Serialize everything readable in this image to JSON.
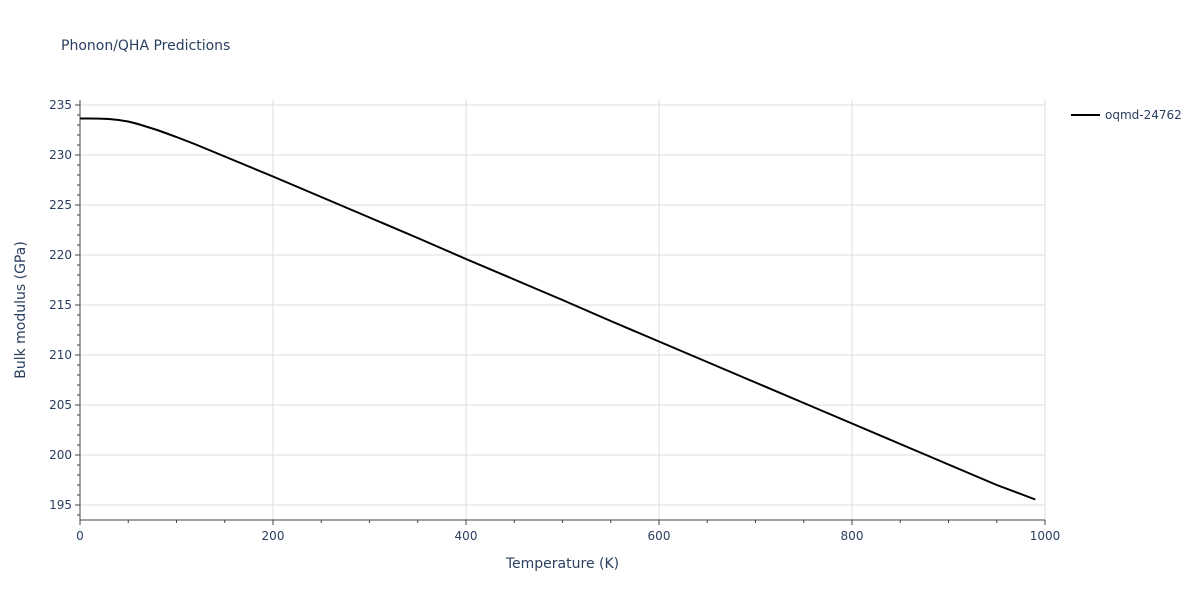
{
  "chart_data": {
    "type": "line",
    "title": "Phonon/QHA Predictions",
    "xlabel": "Temperature (K)",
    "ylabel": "Bulk modulus (GPa)",
    "xlim": [
      0,
      1000
    ],
    "ylim": [
      193.5,
      235.5
    ],
    "x_ticks": [
      0,
      200,
      400,
      600,
      800,
      1000
    ],
    "y_ticks": [
      195,
      200,
      205,
      210,
      215,
      220,
      225,
      230,
      235
    ],
    "x_minor_step": 50,
    "y_minor_step": 1,
    "grid": true,
    "legend_position": "top-right",
    "series": [
      {
        "name": "oqmd-24762",
        "color": "#000000",
        "x": [
          0,
          10,
          20,
          30,
          40,
          50,
          60,
          70,
          80,
          90,
          100,
          120,
          140,
          160,
          180,
          200,
          250,
          300,
          350,
          400,
          450,
          500,
          550,
          600,
          650,
          700,
          750,
          800,
          850,
          900,
          950,
          990
        ],
        "y": [
          233.65,
          233.65,
          233.64,
          233.6,
          233.5,
          233.35,
          233.1,
          232.8,
          232.5,
          232.15,
          231.8,
          231.05,
          230.25,
          229.45,
          228.65,
          227.85,
          225.8,
          223.75,
          221.7,
          219.6,
          217.55,
          215.5,
          213.4,
          211.35,
          209.3,
          207.25,
          205.2,
          203.15,
          201.1,
          199.05,
          197.0,
          195.55
        ]
      }
    ]
  }
}
